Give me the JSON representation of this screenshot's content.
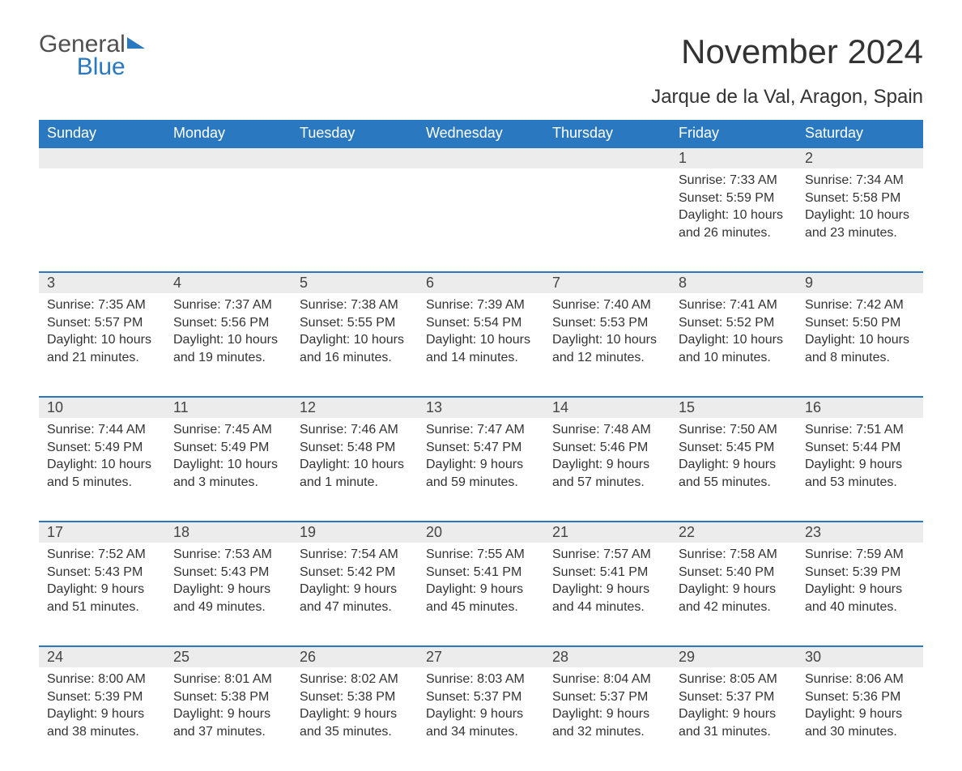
{
  "logo": {
    "word1": "General",
    "word2": "Blue"
  },
  "title": "November 2024",
  "subtitle": "Jarque de la Val, Aragon, Spain",
  "colors": {
    "header_bg": "#2a79c0",
    "header_text": "#ffffff",
    "row_separator": "#2a79c0",
    "daynum_bg": "#ececec",
    "body_text": "#333333",
    "background": "#ffffff"
  },
  "weekdays": [
    "Sunday",
    "Monday",
    "Tuesday",
    "Wednesday",
    "Thursday",
    "Friday",
    "Saturday"
  ],
  "weeks": [
    [
      null,
      null,
      null,
      null,
      null,
      {
        "day": "1",
        "sunrise": "Sunrise: 7:33 AM",
        "sunset": "Sunset: 5:59 PM",
        "daylight1": "Daylight: 10 hours",
        "daylight2": "and 26 minutes."
      },
      {
        "day": "2",
        "sunrise": "Sunrise: 7:34 AM",
        "sunset": "Sunset: 5:58 PM",
        "daylight1": "Daylight: 10 hours",
        "daylight2": "and 23 minutes."
      }
    ],
    [
      {
        "day": "3",
        "sunrise": "Sunrise: 7:35 AM",
        "sunset": "Sunset: 5:57 PM",
        "daylight1": "Daylight: 10 hours",
        "daylight2": "and 21 minutes."
      },
      {
        "day": "4",
        "sunrise": "Sunrise: 7:37 AM",
        "sunset": "Sunset: 5:56 PM",
        "daylight1": "Daylight: 10 hours",
        "daylight2": "and 19 minutes."
      },
      {
        "day": "5",
        "sunrise": "Sunrise: 7:38 AM",
        "sunset": "Sunset: 5:55 PM",
        "daylight1": "Daylight: 10 hours",
        "daylight2": "and 16 minutes."
      },
      {
        "day": "6",
        "sunrise": "Sunrise: 7:39 AM",
        "sunset": "Sunset: 5:54 PM",
        "daylight1": "Daylight: 10 hours",
        "daylight2": "and 14 minutes."
      },
      {
        "day": "7",
        "sunrise": "Sunrise: 7:40 AM",
        "sunset": "Sunset: 5:53 PM",
        "daylight1": "Daylight: 10 hours",
        "daylight2": "and 12 minutes."
      },
      {
        "day": "8",
        "sunrise": "Sunrise: 7:41 AM",
        "sunset": "Sunset: 5:52 PM",
        "daylight1": "Daylight: 10 hours",
        "daylight2": "and 10 minutes."
      },
      {
        "day": "9",
        "sunrise": "Sunrise: 7:42 AM",
        "sunset": "Sunset: 5:50 PM",
        "daylight1": "Daylight: 10 hours",
        "daylight2": "and 8 minutes."
      }
    ],
    [
      {
        "day": "10",
        "sunrise": "Sunrise: 7:44 AM",
        "sunset": "Sunset: 5:49 PM",
        "daylight1": "Daylight: 10 hours",
        "daylight2": "and 5 minutes."
      },
      {
        "day": "11",
        "sunrise": "Sunrise: 7:45 AM",
        "sunset": "Sunset: 5:49 PM",
        "daylight1": "Daylight: 10 hours",
        "daylight2": "and 3 minutes."
      },
      {
        "day": "12",
        "sunrise": "Sunrise: 7:46 AM",
        "sunset": "Sunset: 5:48 PM",
        "daylight1": "Daylight: 10 hours",
        "daylight2": "and 1 minute."
      },
      {
        "day": "13",
        "sunrise": "Sunrise: 7:47 AM",
        "sunset": "Sunset: 5:47 PM",
        "daylight1": "Daylight: 9 hours",
        "daylight2": "and 59 minutes."
      },
      {
        "day": "14",
        "sunrise": "Sunrise: 7:48 AM",
        "sunset": "Sunset: 5:46 PM",
        "daylight1": "Daylight: 9 hours",
        "daylight2": "and 57 minutes."
      },
      {
        "day": "15",
        "sunrise": "Sunrise: 7:50 AM",
        "sunset": "Sunset: 5:45 PM",
        "daylight1": "Daylight: 9 hours",
        "daylight2": "and 55 minutes."
      },
      {
        "day": "16",
        "sunrise": "Sunrise: 7:51 AM",
        "sunset": "Sunset: 5:44 PM",
        "daylight1": "Daylight: 9 hours",
        "daylight2": "and 53 minutes."
      }
    ],
    [
      {
        "day": "17",
        "sunrise": "Sunrise: 7:52 AM",
        "sunset": "Sunset: 5:43 PM",
        "daylight1": "Daylight: 9 hours",
        "daylight2": "and 51 minutes."
      },
      {
        "day": "18",
        "sunrise": "Sunrise: 7:53 AM",
        "sunset": "Sunset: 5:43 PM",
        "daylight1": "Daylight: 9 hours",
        "daylight2": "and 49 minutes."
      },
      {
        "day": "19",
        "sunrise": "Sunrise: 7:54 AM",
        "sunset": "Sunset: 5:42 PM",
        "daylight1": "Daylight: 9 hours",
        "daylight2": "and 47 minutes."
      },
      {
        "day": "20",
        "sunrise": "Sunrise: 7:55 AM",
        "sunset": "Sunset: 5:41 PM",
        "daylight1": "Daylight: 9 hours",
        "daylight2": "and 45 minutes."
      },
      {
        "day": "21",
        "sunrise": "Sunrise: 7:57 AM",
        "sunset": "Sunset: 5:41 PM",
        "daylight1": "Daylight: 9 hours",
        "daylight2": "and 44 minutes."
      },
      {
        "day": "22",
        "sunrise": "Sunrise: 7:58 AM",
        "sunset": "Sunset: 5:40 PM",
        "daylight1": "Daylight: 9 hours",
        "daylight2": "and 42 minutes."
      },
      {
        "day": "23",
        "sunrise": "Sunrise: 7:59 AM",
        "sunset": "Sunset: 5:39 PM",
        "daylight1": "Daylight: 9 hours",
        "daylight2": "and 40 minutes."
      }
    ],
    [
      {
        "day": "24",
        "sunrise": "Sunrise: 8:00 AM",
        "sunset": "Sunset: 5:39 PM",
        "daylight1": "Daylight: 9 hours",
        "daylight2": "and 38 minutes."
      },
      {
        "day": "25",
        "sunrise": "Sunrise: 8:01 AM",
        "sunset": "Sunset: 5:38 PM",
        "daylight1": "Daylight: 9 hours",
        "daylight2": "and 37 minutes."
      },
      {
        "day": "26",
        "sunrise": "Sunrise: 8:02 AM",
        "sunset": "Sunset: 5:38 PM",
        "daylight1": "Daylight: 9 hours",
        "daylight2": "and 35 minutes."
      },
      {
        "day": "27",
        "sunrise": "Sunrise: 8:03 AM",
        "sunset": "Sunset: 5:37 PM",
        "daylight1": "Daylight: 9 hours",
        "daylight2": "and 34 minutes."
      },
      {
        "day": "28",
        "sunrise": "Sunrise: 8:04 AM",
        "sunset": "Sunset: 5:37 PM",
        "daylight1": "Daylight: 9 hours",
        "daylight2": "and 32 minutes."
      },
      {
        "day": "29",
        "sunrise": "Sunrise: 8:05 AM",
        "sunset": "Sunset: 5:37 PM",
        "daylight1": "Daylight: 9 hours",
        "daylight2": "and 31 minutes."
      },
      {
        "day": "30",
        "sunrise": "Sunrise: 8:06 AM",
        "sunset": "Sunset: 5:36 PM",
        "daylight1": "Daylight: 9 hours",
        "daylight2": "and 30 minutes."
      }
    ]
  ]
}
